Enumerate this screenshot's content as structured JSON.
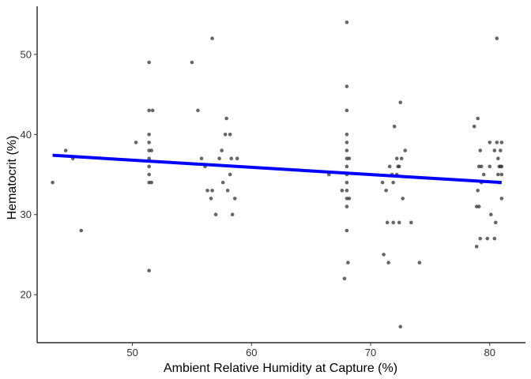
{
  "chart_data": {
    "type": "scatter",
    "title": "",
    "xlabel": "Ambient Relative Humidity at Capture (%)",
    "ylabel": "Hematocrit (%)",
    "xlim": [
      42,
      83
    ],
    "ylim": [
      14,
      56
    ],
    "xticks": [
      50,
      60,
      70,
      80
    ],
    "yticks": [
      20,
      30,
      40,
      50
    ],
    "grid": false,
    "legend": "none",
    "point_color": "#333333",
    "point_opacity": 0.75,
    "trend_color": "#0000ff",
    "trendline": {
      "x": [
        43.3,
        81.0
      ],
      "y": [
        37.4,
        34.0
      ]
    },
    "points": [
      {
        "x": 43.3,
        "y": 34
      },
      {
        "x": 44.4,
        "y": 38
      },
      {
        "x": 45.0,
        "y": 37
      },
      {
        "x": 45.7,
        "y": 28
      },
      {
        "x": 50.3,
        "y": 39
      },
      {
        "x": 51.4,
        "y": 49
      },
      {
        "x": 51.4,
        "y": 43
      },
      {
        "x": 51.4,
        "y": 40
      },
      {
        "x": 51.4,
        "y": 39
      },
      {
        "x": 51.4,
        "y": 38
      },
      {
        "x": 51.4,
        "y": 37
      },
      {
        "x": 51.4,
        "y": 36
      },
      {
        "x": 51.4,
        "y": 35
      },
      {
        "x": 51.4,
        "y": 34
      },
      {
        "x": 51.4,
        "y": 23
      },
      {
        "x": 51.6,
        "y": 38
      },
      {
        "x": 51.6,
        "y": 34
      },
      {
        "x": 51.7,
        "y": 43
      },
      {
        "x": 55.0,
        "y": 49
      },
      {
        "x": 55.5,
        "y": 43
      },
      {
        "x": 55.8,
        "y": 37
      },
      {
        "x": 56.1,
        "y": 36
      },
      {
        "x": 56.3,
        "y": 33
      },
      {
        "x": 56.7,
        "y": 52
      },
      {
        "x": 56.7,
        "y": 33
      },
      {
        "x": 56.6,
        "y": 32
      },
      {
        "x": 57.0,
        "y": 30
      },
      {
        "x": 57.3,
        "y": 37
      },
      {
        "x": 57.5,
        "y": 38
      },
      {
        "x": 57.6,
        "y": 34
      },
      {
        "x": 57.8,
        "y": 40
      },
      {
        "x": 57.9,
        "y": 42
      },
      {
        "x": 58.0,
        "y": 33
      },
      {
        "x": 58.2,
        "y": 35
      },
      {
        "x": 58.2,
        "y": 40
      },
      {
        "x": 58.3,
        "y": 37
      },
      {
        "x": 58.4,
        "y": 30
      },
      {
        "x": 58.6,
        "y": 32
      },
      {
        "x": 58.8,
        "y": 37
      },
      {
        "x": 66.5,
        "y": 35
      },
      {
        "x": 67.6,
        "y": 33
      },
      {
        "x": 67.8,
        "y": 22
      },
      {
        "x": 68.0,
        "y": 54
      },
      {
        "x": 68.0,
        "y": 46
      },
      {
        "x": 68.0,
        "y": 43
      },
      {
        "x": 68.0,
        "y": 40
      },
      {
        "x": 68.0,
        "y": 39
      },
      {
        "x": 68.0,
        "y": 38
      },
      {
        "x": 68.0,
        "y": 37
      },
      {
        "x": 68.0,
        "y": 36
      },
      {
        "x": 68.0,
        "y": 35
      },
      {
        "x": 68.0,
        "y": 34
      },
      {
        "x": 68.0,
        "y": 33
      },
      {
        "x": 68.0,
        "y": 32
      },
      {
        "x": 68.0,
        "y": 31
      },
      {
        "x": 68.0,
        "y": 28
      },
      {
        "x": 68.1,
        "y": 24
      },
      {
        "x": 68.2,
        "y": 37
      },
      {
        "x": 68.2,
        "y": 32
      },
      {
        "x": 71.0,
        "y": 34
      },
      {
        "x": 71.1,
        "y": 25
      },
      {
        "x": 71.3,
        "y": 33
      },
      {
        "x": 71.4,
        "y": 29
      },
      {
        "x": 71.5,
        "y": 24
      },
      {
        "x": 71.6,
        "y": 36
      },
      {
        "x": 71.8,
        "y": 35
      },
      {
        "x": 71.9,
        "y": 34
      },
      {
        "x": 71.9,
        "y": 29
      },
      {
        "x": 72.0,
        "y": 41
      },
      {
        "x": 72.2,
        "y": 37
      },
      {
        "x": 72.2,
        "y": 35
      },
      {
        "x": 72.3,
        "y": 36
      },
      {
        "x": 72.4,
        "y": 29
      },
      {
        "x": 72.4,
        "y": 36
      },
      {
        "x": 72.5,
        "y": 44
      },
      {
        "x": 72.6,
        "y": 37
      },
      {
        "x": 72.5,
        "y": 16
      },
      {
        "x": 72.7,
        "y": 32
      },
      {
        "x": 72.9,
        "y": 38
      },
      {
        "x": 73.4,
        "y": 29
      },
      {
        "x": 74.1,
        "y": 24
      },
      {
        "x": 78.7,
        "y": 41
      },
      {
        "x": 78.9,
        "y": 26
      },
      {
        "x": 78.9,
        "y": 31
      },
      {
        "x": 79.0,
        "y": 42
      },
      {
        "x": 79.0,
        "y": 33
      },
      {
        "x": 79.1,
        "y": 31
      },
      {
        "x": 79.1,
        "y": 36
      },
      {
        "x": 79.2,
        "y": 38
      },
      {
        "x": 79.2,
        "y": 27
      },
      {
        "x": 79.3,
        "y": 36
      },
      {
        "x": 79.3,
        "y": 34
      },
      {
        "x": 79.5,
        "y": 35
      },
      {
        "x": 79.8,
        "y": 27
      },
      {
        "x": 80.0,
        "y": 39
      },
      {
        "x": 80.0,
        "y": 36
      },
      {
        "x": 80.1,
        "y": 30
      },
      {
        "x": 80.4,
        "y": 27
      },
      {
        "x": 80.4,
        "y": 38
      },
      {
        "x": 80.5,
        "y": 29
      },
      {
        "x": 80.6,
        "y": 39
      },
      {
        "x": 80.6,
        "y": 52
      },
      {
        "x": 80.7,
        "y": 37
      },
      {
        "x": 80.7,
        "y": 35
      },
      {
        "x": 80.8,
        "y": 36
      },
      {
        "x": 80.9,
        "y": 38
      },
      {
        "x": 80.9,
        "y": 36
      },
      {
        "x": 81.0,
        "y": 39
      },
      {
        "x": 81.0,
        "y": 36
      },
      {
        "x": 81.0,
        "y": 35
      },
      {
        "x": 81.0,
        "y": 32
      },
      {
        "x": 80.8,
        "y": 34
      }
    ]
  }
}
